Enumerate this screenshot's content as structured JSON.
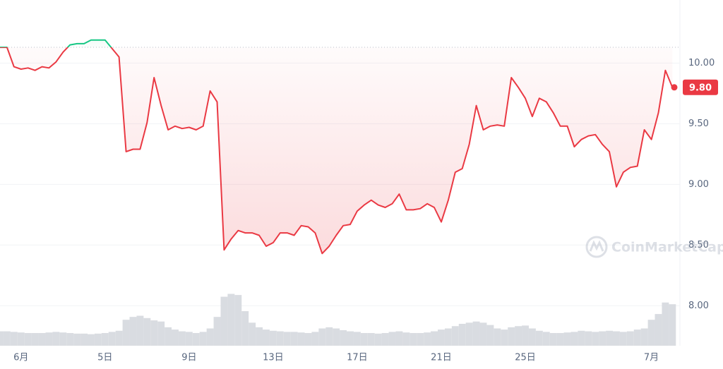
{
  "chart_data": {
    "type": "line",
    "categories": [
      null,
      null,
      null,
      "6月",
      null,
      null,
      null,
      null,
      null,
      null,
      null,
      null,
      null,
      null,
      null,
      "5日",
      null,
      null,
      null,
      null,
      null,
      null,
      null,
      null,
      null,
      null,
      null,
      "9日",
      null,
      null,
      null,
      null,
      null,
      null,
      null,
      null,
      null,
      null,
      null,
      "13日",
      null,
      null,
      null,
      null,
      null,
      null,
      null,
      null,
      null,
      null,
      null,
      "17日",
      null,
      null,
      null,
      null,
      null,
      null,
      null,
      null,
      null,
      null,
      null,
      "21日",
      null,
      null,
      null,
      null,
      null,
      null,
      null,
      null,
      null,
      null,
      null,
      "25日",
      null,
      null,
      null,
      null,
      null,
      null,
      null,
      null,
      null,
      null,
      null,
      null,
      null,
      null,
      null,
      null,
      null,
      "7月",
      null,
      null,
      null
    ],
    "series": [
      {
        "name": "price",
        "color": "#ea3943",
        "up_color": "#16c784",
        "values": [
          10.13,
          10.13,
          9.97,
          9.95,
          9.96,
          9.94,
          9.97,
          9.96,
          10.01,
          10.09,
          10.15,
          10.16,
          10.16,
          10.19,
          10.19,
          10.19,
          10.12,
          10.05,
          9.27,
          9.29,
          9.29,
          9.51,
          9.88,
          9.65,
          9.45,
          9.48,
          9.46,
          9.47,
          9.45,
          9.48,
          9.77,
          9.68,
          8.46,
          8.55,
          8.62,
          8.6,
          8.6,
          8.58,
          8.49,
          8.52,
          8.6,
          8.6,
          8.58,
          8.66,
          8.65,
          8.6,
          8.43,
          8.49,
          8.58,
          8.66,
          8.67,
          8.78,
          8.83,
          8.87,
          8.83,
          8.81,
          8.84,
          8.92,
          8.79,
          8.79,
          8.8,
          8.84,
          8.81,
          8.69,
          8.87,
          9.1,
          9.13,
          9.33,
          9.65,
          9.45,
          9.48,
          9.49,
          9.48,
          9.88,
          9.8,
          9.71,
          9.56,
          9.71,
          9.68,
          9.59,
          9.48,
          9.48,
          9.31,
          9.37,
          9.4,
          9.41,
          9.33,
          9.27,
          8.98,
          9.1,
          9.14,
          9.15,
          9.45,
          9.37,
          9.59,
          9.94,
          9.8
        ]
      },
      {
        "name": "volume",
        "color": "#d9dce1",
        "axis": "y2",
        "values": [
          0.25,
          0.25,
          0.24,
          0.23,
          0.22,
          0.22,
          0.22,
          0.23,
          0.24,
          0.23,
          0.22,
          0.21,
          0.21,
          0.2,
          0.21,
          0.22,
          0.24,
          0.26,
          0.45,
          0.5,
          0.52,
          0.48,
          0.44,
          0.42,
          0.32,
          0.28,
          0.25,
          0.24,
          0.22,
          0.24,
          0.3,
          0.5,
          0.85,
          0.9,
          0.88,
          0.6,
          0.4,
          0.32,
          0.28,
          0.26,
          0.25,
          0.24,
          0.24,
          0.23,
          0.22,
          0.24,
          0.3,
          0.32,
          0.3,
          0.27,
          0.25,
          0.24,
          0.22,
          0.22,
          0.21,
          0.22,
          0.24,
          0.25,
          0.23,
          0.22,
          0.22,
          0.23,
          0.25,
          0.28,
          0.3,
          0.34,
          0.38,
          0.4,
          0.42,
          0.4,
          0.36,
          0.3,
          0.28,
          0.32,
          0.34,
          0.35,
          0.3,
          0.26,
          0.24,
          0.22,
          0.22,
          0.23,
          0.24,
          0.26,
          0.25,
          0.24,
          0.25,
          0.26,
          0.25,
          0.24,
          0.25,
          0.28,
          0.3,
          0.45,
          0.55,
          0.75,
          0.72
        ]
      }
    ],
    "ylim": [
      7.67,
      10.52
    ],
    "yticks": [
      {
        "value": 10,
        "label": "10.00"
      },
      {
        "value": 9.5,
        "label": "9.50"
      },
      {
        "value": 9,
        "label": "9.00"
      },
      {
        "value": 8.5,
        "label": "8.50"
      },
      {
        "value": 8,
        "label": "8.00"
      }
    ],
    "y2lim": [
      0,
      6
    ],
    "grid": true,
    "price_tag": "9.80",
    "watermark": "CoinMarketCap"
  }
}
